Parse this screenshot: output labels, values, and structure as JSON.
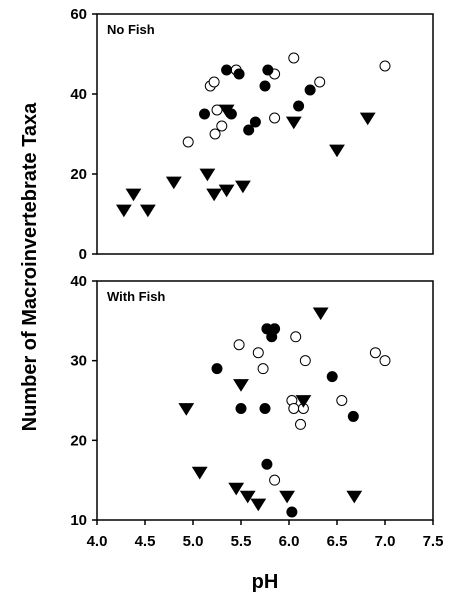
{
  "chart_data": {
    "type": "scatter",
    "xlabel": "pH",
    "ylabel": "Number of Macroinvertebrate Taxa",
    "xlim": [
      4.0,
      7.5
    ],
    "x_ticks": [
      "4.0",
      "4.5",
      "5.0",
      "5.5",
      "6.0",
      "6.5",
      "7.0",
      "7.5"
    ],
    "marker_legend": {
      "filled_circle": "#000000",
      "open_circle": "#ffffff",
      "triangle_down": "#000000"
    },
    "panels": [
      {
        "label": "No Fish",
        "ylim": [
          0,
          60
        ],
        "y_ticks": [
          "0",
          "20",
          "40",
          "60"
        ],
        "series": [
          {
            "marker": "open_circle",
            "points": [
              [
                4.95,
                28
              ],
              [
                5.18,
                42
              ],
              [
                5.22,
                43
              ],
              [
                5.25,
                36
              ],
              [
                5.23,
                30
              ],
              [
                5.3,
                32
              ],
              [
                5.45,
                46
              ],
              [
                5.85,
                45
              ],
              [
                5.85,
                34
              ],
              [
                6.05,
                49
              ],
              [
                6.32,
                43
              ],
              [
                7.0,
                47
              ]
            ]
          },
          {
            "marker": "filled_circle",
            "points": [
              [
                5.12,
                35
              ],
              [
                5.35,
                46
              ],
              [
                5.4,
                35
              ],
              [
                5.48,
                45
              ],
              [
                5.58,
                31
              ],
              [
                5.65,
                33
              ],
              [
                5.75,
                42
              ],
              [
                5.78,
                46
              ],
              [
                6.1,
                37
              ],
              [
                6.22,
                41
              ]
            ]
          },
          {
            "marker": "triangle_down",
            "points": [
              [
                4.28,
                11
              ],
              [
                4.38,
                15
              ],
              [
                4.53,
                11
              ],
              [
                4.8,
                18
              ],
              [
                5.15,
                20
              ],
              [
                5.22,
                15
              ],
              [
                5.35,
                16
              ],
              [
                5.52,
                17
              ],
              [
                5.35,
                36
              ],
              [
                6.05,
                33
              ],
              [
                6.5,
                26
              ],
              [
                6.82,
                34
              ]
            ]
          }
        ]
      },
      {
        "label": "With Fish",
        "ylim": [
          10,
          40
        ],
        "y_ticks": [
          "10",
          "20",
          "30",
          "40"
        ],
        "series": [
          {
            "marker": "open_circle",
            "points": [
              [
                5.48,
                32
              ],
              [
                5.68,
                31
              ],
              [
                5.73,
                29
              ],
              [
                5.85,
                15
              ],
              [
                6.03,
                25
              ],
              [
                6.05,
                24
              ],
              [
                6.07,
                33
              ],
              [
                6.12,
                22
              ],
              [
                6.15,
                24
              ],
              [
                6.17,
                30
              ],
              [
                6.55,
                25
              ],
              [
                6.9,
                31
              ],
              [
                7.0,
                30
              ]
            ]
          },
          {
            "marker": "filled_circle",
            "points": [
              [
                5.25,
                29
              ],
              [
                5.5,
                24
              ],
              [
                5.75,
                24
              ],
              [
                5.77,
                34
              ],
              [
                5.82,
                33
              ],
              [
                5.85,
                34
              ],
              [
                5.77,
                17
              ],
              [
                6.03,
                11
              ],
              [
                6.45,
                28
              ],
              [
                6.67,
                23
              ]
            ]
          },
          {
            "marker": "triangle_down",
            "points": [
              [
                4.93,
                24
              ],
              [
                5.07,
                16
              ],
              [
                5.45,
                14
              ],
              [
                5.5,
                27
              ],
              [
                5.57,
                13
              ],
              [
                5.68,
                12
              ],
              [
                5.98,
                13
              ],
              [
                6.15,
                25
              ],
              [
                6.33,
                36
              ],
              [
                6.68,
                13
              ]
            ]
          }
        ]
      }
    ]
  }
}
